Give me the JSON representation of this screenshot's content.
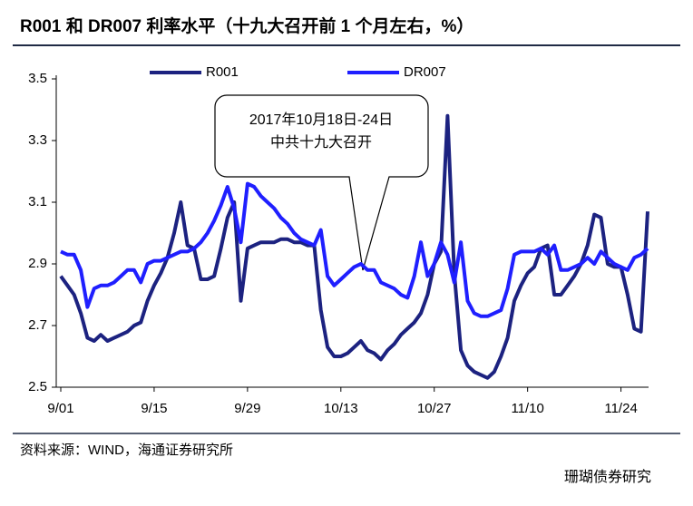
{
  "chart_data": {
    "type": "line",
    "title": "R001 和 DR007 利率水平（十九大召开前 1 个月左右，%）",
    "source": "资料来源：WIND，海通证券研究所",
    "watermark": "珊瑚债券研究",
    "annotation": [
      "2017年10月18日-24日",
      "中共十九大召开"
    ],
    "categories": [
      "9/01",
      null,
      null,
      null,
      null,
      null,
      null,
      null,
      null,
      null,
      null,
      null,
      null,
      null,
      "9/15",
      null,
      null,
      null,
      null,
      null,
      null,
      null,
      null,
      null,
      null,
      null,
      null,
      null,
      "9/29",
      null,
      null,
      null,
      null,
      null,
      null,
      null,
      null,
      null,
      null,
      null,
      null,
      null,
      "10/13",
      null,
      null,
      null,
      null,
      null,
      null,
      null,
      null,
      null,
      null,
      null,
      null,
      null,
      "10/27",
      null,
      null,
      null,
      null,
      null,
      null,
      null,
      null,
      null,
      null,
      null,
      null,
      null,
      "11/10",
      null,
      null,
      null,
      null,
      null,
      null,
      null,
      null,
      null,
      null,
      null,
      null,
      null,
      "11/24",
      null,
      null,
      null,
      null
    ],
    "series": [
      {
        "name": "R001",
        "color": "#1c2280",
        "values": [
          2.86,
          2.83,
          2.8,
          2.74,
          2.66,
          2.65,
          2.67,
          2.65,
          2.66,
          2.67,
          2.68,
          2.7,
          2.71,
          2.78,
          2.83,
          2.87,
          2.92,
          3.0,
          3.1,
          2.96,
          2.95,
          2.85,
          2.85,
          2.86,
          2.95,
          3.05,
          3.1,
          2.78,
          2.95,
          2.96,
          2.97,
          2.97,
          2.97,
          2.98,
          2.98,
          2.97,
          2.97,
          2.96,
          2.96,
          2.75,
          2.63,
          2.6,
          2.6,
          2.61,
          2.63,
          2.65,
          2.62,
          2.61,
          2.59,
          2.62,
          2.64,
          2.67,
          2.69,
          2.71,
          2.74,
          2.8,
          2.9,
          2.94,
          3.38,
          2.87,
          2.62,
          2.57,
          2.55,
          2.54,
          2.53,
          2.55,
          2.6,
          2.66,
          2.78,
          2.83,
          2.87,
          2.89,
          2.95,
          2.96,
          2.8,
          2.8,
          2.83,
          2.86,
          2.9,
          2.96,
          3.06,
          3.05,
          2.9,
          2.89,
          2.89,
          2.8,
          2.69,
          2.68,
          3.07
        ]
      },
      {
        "name": "DR007",
        "color": "#1f1fff",
        "values": [
          2.94,
          2.93,
          2.93,
          2.88,
          2.76,
          2.82,
          2.83,
          2.83,
          2.84,
          2.86,
          2.88,
          2.88,
          2.84,
          2.9,
          2.91,
          2.91,
          2.92,
          2.93,
          2.94,
          2.94,
          2.95,
          2.97,
          3.0,
          3.04,
          3.09,
          3.15,
          3.08,
          2.97,
          3.16,
          3.15,
          3.12,
          3.1,
          3.08,
          3.05,
          3.03,
          3.0,
          2.98,
          2.97,
          2.96,
          3.01,
          2.86,
          2.83,
          2.85,
          2.87,
          2.89,
          2.9,
          2.88,
          2.88,
          2.84,
          2.83,
          2.82,
          2.8,
          2.79,
          2.86,
          2.97,
          2.86,
          2.9,
          2.97,
          2.93,
          2.84,
          2.97,
          2.78,
          2.74,
          2.73,
          2.73,
          2.74,
          2.75,
          2.82,
          2.93,
          2.94,
          2.94,
          2.94,
          2.95,
          2.93,
          2.96,
          2.88,
          2.88,
          2.89,
          2.9,
          2.92,
          2.9,
          2.94,
          2.92,
          2.9,
          2.89,
          2.88,
          2.92,
          2.93,
          2.95
        ]
      }
    ],
    "ylim": [
      2.5,
      3.5
    ],
    "yticks": [
      {
        "value": 2.5,
        "label": "2.5"
      },
      {
        "value": 2.7,
        "label": "2.7"
      },
      {
        "value": 2.9,
        "label": "2.9"
      },
      {
        "value": 3.1,
        "label": "3.1"
      },
      {
        "value": 3.3,
        "label": "3.3"
      },
      {
        "value": 3.5,
        "label": "3.5"
      }
    ],
    "grid": false
  }
}
